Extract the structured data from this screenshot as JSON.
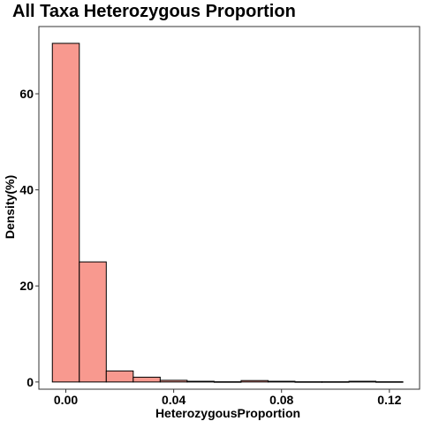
{
  "chart_data": {
    "type": "bar",
    "title": "All Taxa Heterozygous Proportion",
    "xlabel": "HeterozygousProportion",
    "ylabel": "Density(%)",
    "xlim": [
      -0.01,
      0.1312
    ],
    "ylim": [
      -1.5,
      74.0
    ],
    "x_ticks": [
      {
        "value": 0.0,
        "label": "0.00"
      },
      {
        "value": 0.04,
        "label": "0.04"
      },
      {
        "value": 0.08,
        "label": "0.08"
      },
      {
        "value": 0.12,
        "label": "0.12"
      }
    ],
    "y_ticks": [
      {
        "value": 0,
        "label": "0"
      },
      {
        "value": 20,
        "label": "20"
      },
      {
        "value": 40,
        "label": "40"
      },
      {
        "value": 60,
        "label": "60"
      }
    ],
    "bin_width": 0.01,
    "bins": [
      {
        "start": -0.005,
        "end": 0.005,
        "value": 70.5
      },
      {
        "start": 0.005,
        "end": 0.015,
        "value": 25.0
      },
      {
        "start": 0.015,
        "end": 0.025,
        "value": 2.3
      },
      {
        "start": 0.025,
        "end": 0.035,
        "value": 1.0
      },
      {
        "start": 0.035,
        "end": 0.045,
        "value": 0.35
      },
      {
        "start": 0.045,
        "end": 0.055,
        "value": 0.15
      },
      {
        "start": 0.055,
        "end": 0.065,
        "value": 0.05
      },
      {
        "start": 0.065,
        "end": 0.075,
        "value": 0.3
      },
      {
        "start": 0.075,
        "end": 0.085,
        "value": 0.15
      },
      {
        "start": 0.085,
        "end": 0.095,
        "value": 0.05
      },
      {
        "start": 0.095,
        "end": 0.105,
        "value": 0.05
      },
      {
        "start": 0.105,
        "end": 0.115,
        "value": 0.15
      },
      {
        "start": 0.115,
        "end": 0.125,
        "value": 0.05
      }
    ],
    "bar_fill": "#f8998f",
    "bar_stroke": "#000000",
    "grid": false,
    "legend": "none"
  }
}
